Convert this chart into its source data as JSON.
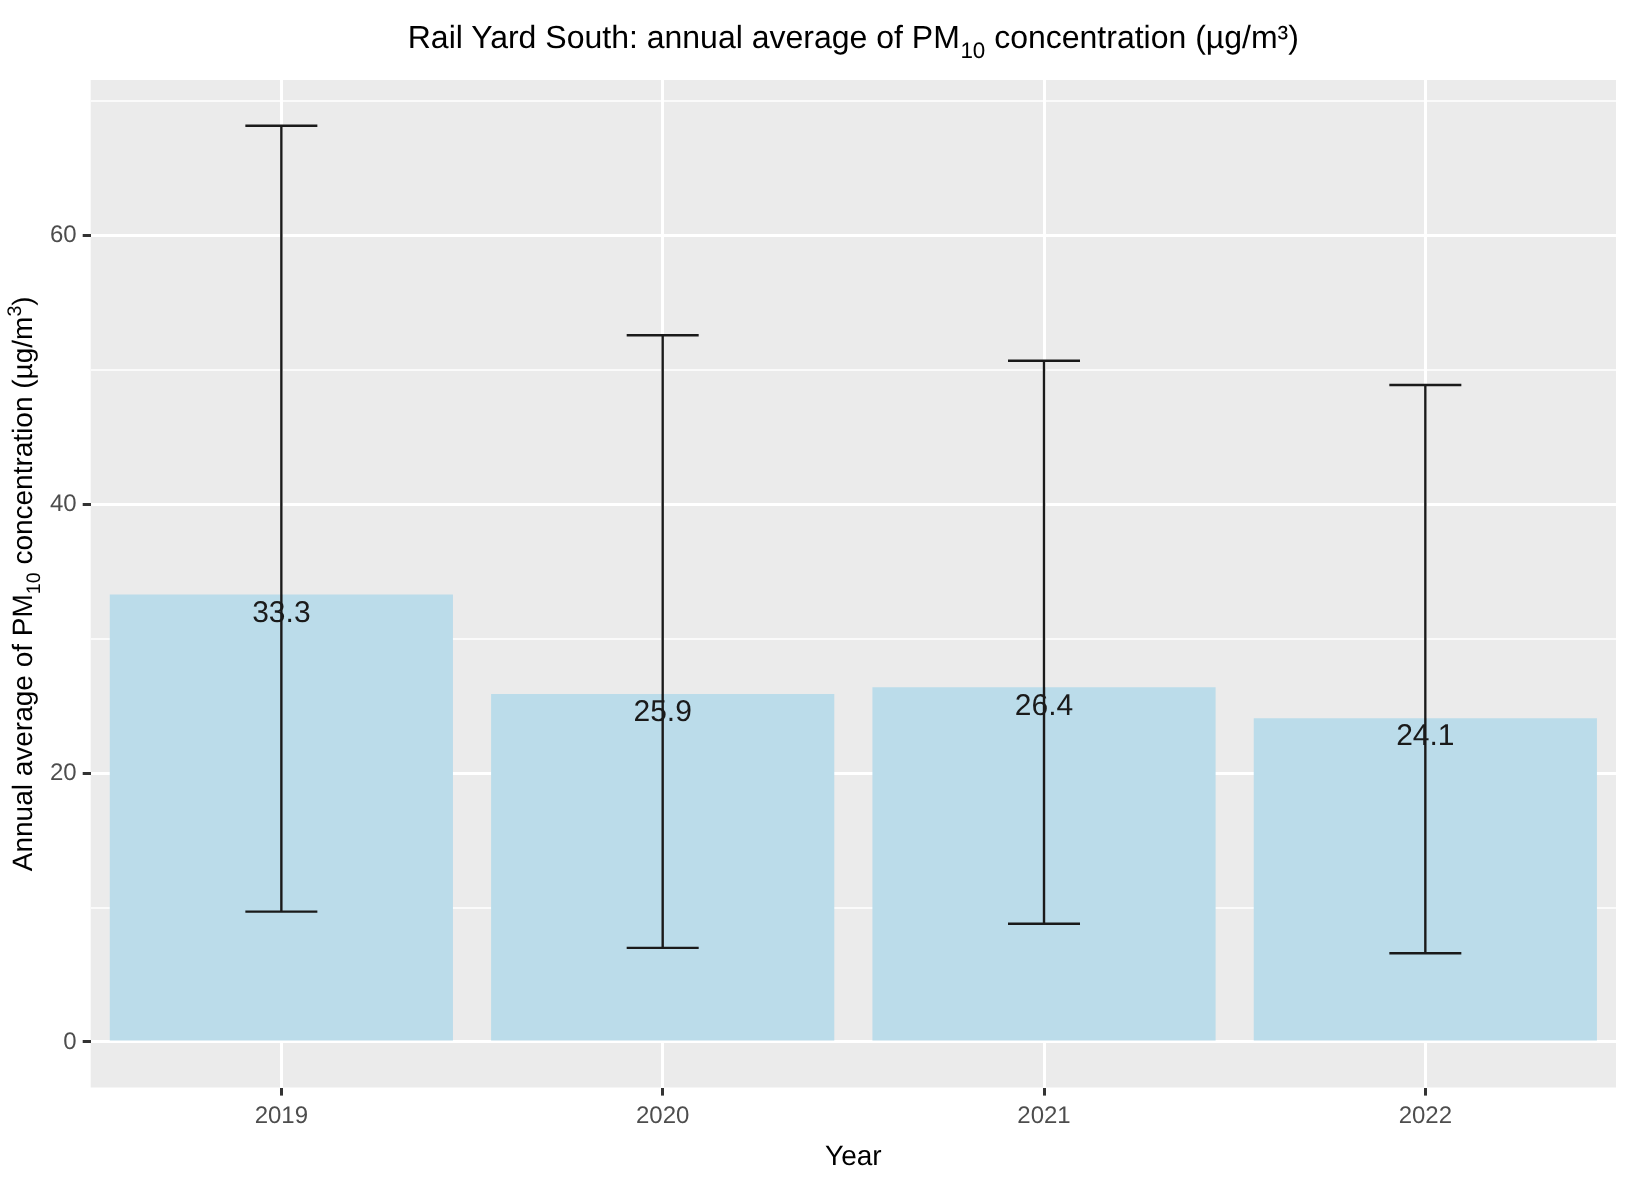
{
  "chart_data": {
    "type": "bar",
    "title": "Rail Yard South: annual average of PM$_{10}$ concentration (µg/m³)",
    "xlabel": "Year",
    "ylabel": "Annual average of PM$_{10}$ concentration (µg/m$^{3}$)",
    "categories": [
      "2019",
      "2020",
      "2021",
      "2022"
    ],
    "values": [
      33.3,
      25.9,
      26.4,
      24.1
    ],
    "errors": [
      [
        9.7,
        68.2
      ],
      [
        7.0,
        52.6
      ],
      [
        8.8,
        50.7
      ],
      [
        6.6,
        48.9
      ]
    ],
    "color": "#bbdcea",
    "data_labels": true,
    "ylim": [
      -3.4,
      71.6
    ],
    "yticks": [
      0,
      {
        "value": 10,
        "label": null
      },
      20,
      {
        "value": 30,
        "label": null
      },
      40,
      {
        "value": 50,
        "label": null
      },
      60,
      {
        "value": 70,
        "label": null
      }
    ],
    "grid": true
  }
}
